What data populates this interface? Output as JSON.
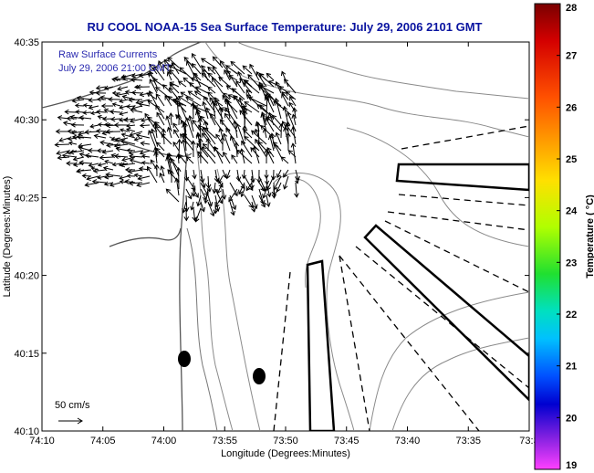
{
  "chart_data": {
    "type": "map",
    "title": "RU COOL  NOAA-15  Sea Surface Temperature:  July 29, 2006 2101 GMT",
    "xlabel": "Longitude (Degrees:Minutes)",
    "ylabel": "Latitude (Degrees:Minutes)",
    "xlim": [
      -74.1667,
      -73.5
    ],
    "ylim": [
      40.1667,
      40.5833
    ],
    "x_ticks": [
      "74:10",
      "74:05",
      "74:00",
      "73:55",
      "73:50",
      "73:45",
      "73:40",
      "73:35",
      "73:3"
    ],
    "y_ticks": [
      "40:35",
      "40:30",
      "40:25",
      "40:20",
      "40:15",
      "40:10"
    ],
    "annotation_lines": [
      "Raw Surface Currents",
      "July 29, 2006 21:00 GMT"
    ],
    "scale_label": "50 cm/s",
    "colorbar": {
      "label": "Temperature ( °C)",
      "min": 19,
      "max": 28,
      "ticks": [
        "28",
        "27",
        "26",
        "25",
        "24",
        "23",
        "22",
        "21",
        "20",
        "19"
      ]
    },
    "colors": {
      "title": "#0a14a0",
      "annotation": "#2a2ab0",
      "contour": "#888888",
      "coastline": "#555555"
    }
  }
}
